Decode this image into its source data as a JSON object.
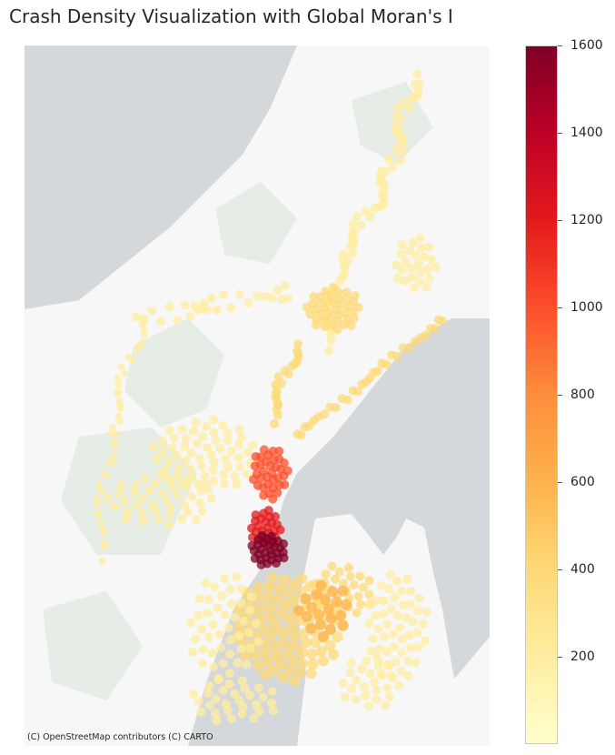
{
  "title": "Crash Density Visualization with Global Moran's I",
  "attribution": "(C) OpenStreetMap contributors (C) CARTO",
  "colorbar": {
    "colormap": "YlOrRd",
    "min": 0,
    "max": 1600,
    "ticks": [
      200,
      400,
      600,
      800,
      1000,
      1200,
      1400,
      1600
    ],
    "tick_labels": [
      "200",
      "400",
      "600",
      "800",
      "1000",
      "1200",
      "1400",
      "1600"
    ]
  },
  "colors": {
    "water": "#d5d8db",
    "land": "#f7f7f7",
    "park": "#e8ede8",
    "low": "#ffffcc",
    "high": "#800026"
  }
}
